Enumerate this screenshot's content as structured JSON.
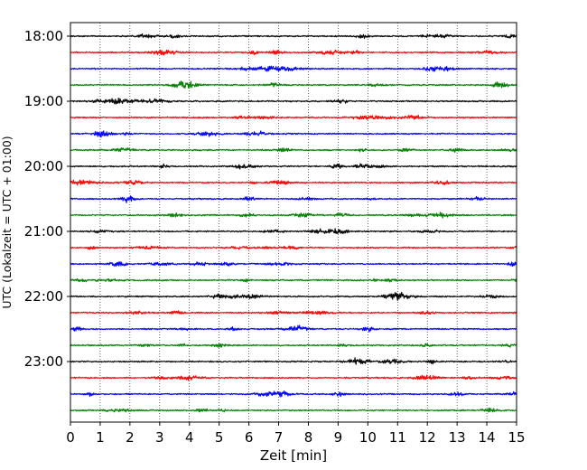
{
  "chart_data": {
    "type": "line",
    "title": "",
    "xlabel": "Zeit  [min]",
    "ylabel": "UTC (Lokalzeit = UTC + 01:00)",
    "xlim": [
      0,
      15
    ],
    "x_ticks": [
      "0",
      "1",
      "2",
      "3",
      "4",
      "5",
      "6",
      "7",
      "8",
      "9",
      "10",
      "11",
      "12",
      "13",
      "14",
      "15"
    ],
    "y_tick_labels": [
      "18:00",
      "19:00",
      "20:00",
      "21:00",
      "22:00",
      "23:00"
    ],
    "grid": "vertical dotted",
    "legend": "none",
    "series_color_cycle": [
      "#000000",
      "#ff0000",
      "#0000ff",
      "#008000"
    ],
    "traces": [
      {
        "start": "18:00",
        "color": "#000000"
      },
      {
        "start": "18:15",
        "color": "#ff0000"
      },
      {
        "start": "18:30",
        "color": "#0000ff"
      },
      {
        "start": "18:45",
        "color": "#008000"
      },
      {
        "start": "19:00",
        "color": "#000000"
      },
      {
        "start": "19:15",
        "color": "#ff0000"
      },
      {
        "start": "19:30",
        "color": "#0000ff"
      },
      {
        "start": "19:45",
        "color": "#008000"
      },
      {
        "start": "20:00",
        "color": "#000000"
      },
      {
        "start": "20:15",
        "color": "#ff0000"
      },
      {
        "start": "20:30",
        "color": "#0000ff"
      },
      {
        "start": "20:45",
        "color": "#008000"
      },
      {
        "start": "21:00",
        "color": "#000000"
      },
      {
        "start": "21:15",
        "color": "#ff0000"
      },
      {
        "start": "21:30",
        "color": "#0000ff"
      },
      {
        "start": "21:45",
        "color": "#008000"
      },
      {
        "start": "22:00",
        "color": "#000000"
      },
      {
        "start": "22:15",
        "color": "#ff0000"
      },
      {
        "start": "22:30",
        "color": "#0000ff"
      },
      {
        "start": "22:45",
        "color": "#008000"
      },
      {
        "start": "23:00",
        "color": "#000000"
      },
      {
        "start": "23:15",
        "color": "#ff0000"
      },
      {
        "start": "23:30",
        "color": "#0000ff"
      },
      {
        "start": "23:45",
        "color": "#008000"
      }
    ]
  }
}
